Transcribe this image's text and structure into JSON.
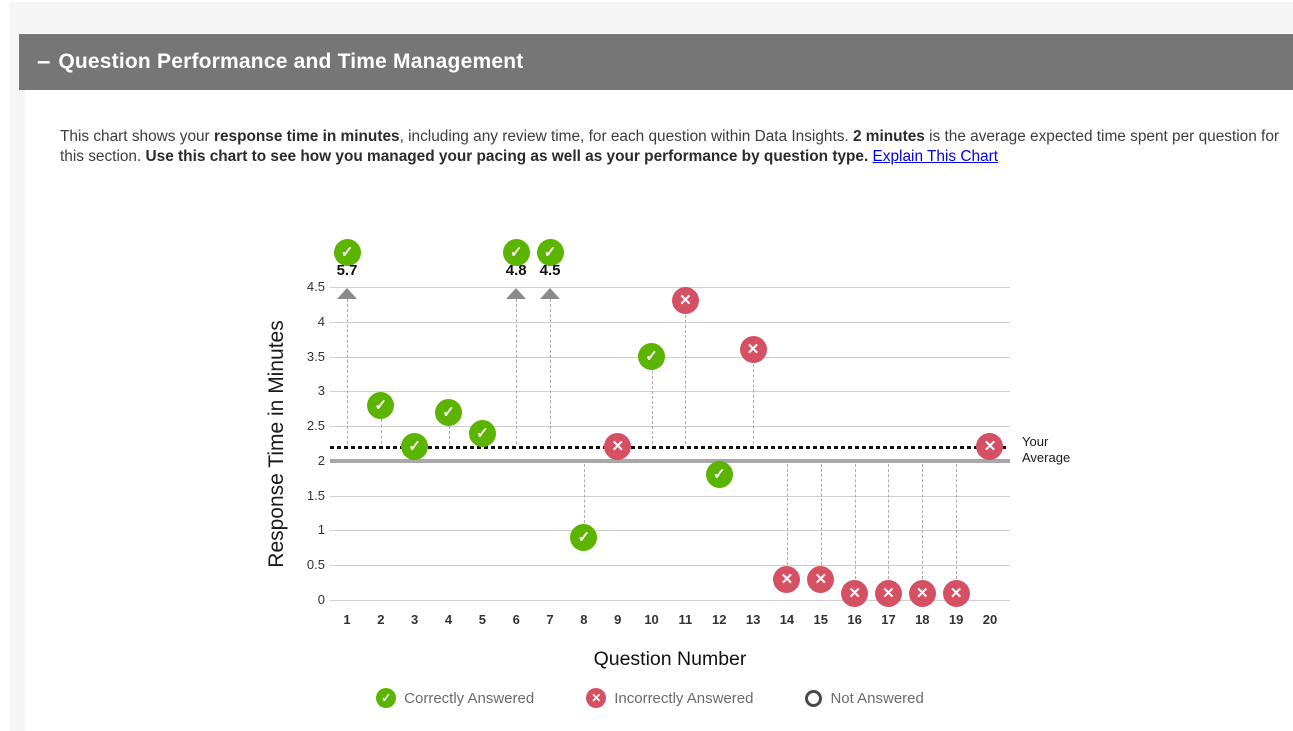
{
  "header": {
    "collapse_symbol": "–",
    "title": "Question Performance and Time Management"
  },
  "description": {
    "segments": [
      {
        "text": "This chart shows your ",
        "bold": false
      },
      {
        "text": "response time in minutes",
        "bold": true
      },
      {
        "text": ", including any review time, for each question within Data Insights. ",
        "bold": false
      },
      {
        "text": "2 minutes",
        "bold": true
      },
      {
        "text": " is the average expected time spent per question for this section. ",
        "bold": false
      },
      {
        "text": "Use this chart to see how you managed your pacing as well as your performance by question type.",
        "bold": true
      },
      {
        "text": " ",
        "bold": false
      }
    ],
    "link_label": "Explain This Chart"
  },
  "colors": {
    "correct": "#5ab400",
    "incorrect": "#d65063",
    "average_line": "#111111",
    "expected_line": "#a8a8a8",
    "header_bg": "#767676"
  },
  "chart_data": {
    "type": "scatter",
    "xlabel": "Question Number",
    "ylabel": "Response Time in Minutes",
    "ylim": [
      0,
      4.5
    ],
    "ytick_step": 0.5,
    "clip_max": 4.5,
    "grid": true,
    "average_line": {
      "value": 2.2,
      "label": "Your Average"
    },
    "expected_line": {
      "value": 2.0
    },
    "points": [
      {
        "q": 1,
        "minutes": 5.7,
        "status": "correct",
        "clipped": true
      },
      {
        "q": 2,
        "minutes": 2.8,
        "status": "correct"
      },
      {
        "q": 3,
        "minutes": 2.2,
        "status": "correct"
      },
      {
        "q": 4,
        "minutes": 2.7,
        "status": "correct"
      },
      {
        "q": 5,
        "minutes": 2.4,
        "status": "correct"
      },
      {
        "q": 6,
        "minutes": 4.8,
        "status": "correct",
        "clipped": true
      },
      {
        "q": 7,
        "minutes": 4.5,
        "status": "correct",
        "clipped": true
      },
      {
        "q": 8,
        "minutes": 0.9,
        "status": "correct"
      },
      {
        "q": 9,
        "minutes": 2.2,
        "status": "incorrect"
      },
      {
        "q": 10,
        "minutes": 3.5,
        "status": "correct"
      },
      {
        "q": 11,
        "minutes": 4.3,
        "status": "incorrect"
      },
      {
        "q": 12,
        "minutes": 1.8,
        "status": "correct"
      },
      {
        "q": 13,
        "minutes": 3.6,
        "status": "incorrect"
      },
      {
        "q": 14,
        "minutes": 0.3,
        "status": "incorrect"
      },
      {
        "q": 15,
        "minutes": 0.3,
        "status": "incorrect"
      },
      {
        "q": 16,
        "minutes": 0.1,
        "status": "incorrect"
      },
      {
        "q": 17,
        "minutes": 0.1,
        "status": "incorrect"
      },
      {
        "q": 18,
        "minutes": 0.1,
        "status": "incorrect"
      },
      {
        "q": 19,
        "minutes": 0.1,
        "status": "incorrect"
      },
      {
        "q": 20,
        "minutes": 2.2,
        "status": "incorrect"
      }
    ],
    "legend": [
      {
        "status": "correct",
        "label": "Correctly Answered"
      },
      {
        "status": "incorrect",
        "label": "Incorrectly Answered"
      },
      {
        "status": "none",
        "label": "Not Answered"
      }
    ]
  }
}
